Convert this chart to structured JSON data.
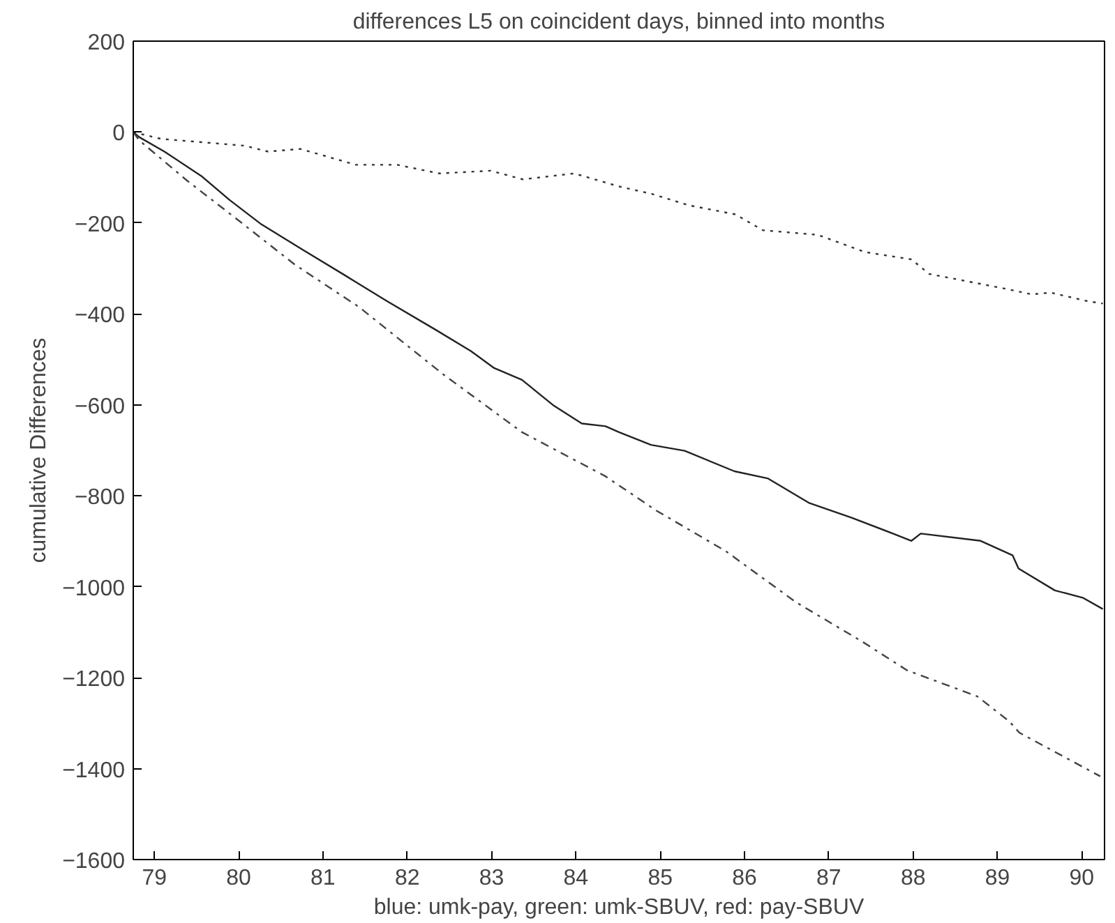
{
  "chart_data": {
    "type": "line",
    "title": "differences L5 on coincident days, binned into months",
    "xlabel": "blue: umk-pay, green: umk-SBUV, red: pay-SBUV",
    "ylabel": "cumulative Differences",
    "xlim": [
      78.75,
      90.27
    ],
    "ylim": [
      -1600,
      200
    ],
    "xticks": [
      79,
      80,
      81,
      82,
      83,
      84,
      85,
      86,
      87,
      88,
      89,
      90
    ],
    "yticks": [
      -1600,
      -1400,
      -1200,
      -1000,
      -800,
      -600,
      -400,
      -200,
      0,
      200
    ],
    "series": [
      {
        "color": "#333333",
        "line_style": "dotted",
        "x": [
          78.75,
          79.08,
          80.07,
          80.35,
          80.73,
          81.39,
          81.88,
          82.38,
          82.99,
          83.37,
          83.98,
          84.52,
          84.9,
          85.34,
          85.89,
          86.22,
          86.87,
          87.43,
          87.98,
          88.19,
          89.08,
          89.41,
          89.63,
          90.07,
          90.25
        ],
        "values": [
          0,
          -15,
          -30,
          -43,
          -37,
          -72,
          -72,
          -91,
          -85,
          -104,
          -91,
          -120,
          -136,
          -161,
          -181,
          -216,
          -226,
          -264,
          -280,
          -312,
          -344,
          -357,
          -353,
          -372,
          -377
        ]
      },
      {
        "color": "#222222",
        "line_style": "solid",
        "x": [
          78.75,
          78.82,
          79.12,
          79.56,
          79.89,
          80.27,
          80.77,
          81.26,
          81.76,
          82.32,
          82.75,
          83.03,
          83.36,
          83.74,
          84.07,
          84.35,
          84.51,
          84.89,
          85.29,
          85.88,
          86.28,
          86.77,
          87.27,
          87.76,
          87.98,
          88.09,
          88.8,
          89.18,
          89.25,
          89.68,
          90.01,
          90.25
        ],
        "values": [
          0,
          -11,
          -43,
          -97,
          -149,
          -203,
          -260,
          -315,
          -372,
          -433,
          -481,
          -519,
          -545,
          -602,
          -641,
          -647,
          -660,
          -688,
          -701,
          -746,
          -762,
          -816,
          -848,
          -883,
          -899,
          -883,
          -899,
          -931,
          -960,
          -1008,
          -1024,
          -1049
        ]
      },
      {
        "color": "#444444",
        "line_style": "dashed",
        "x": [
          78.75,
          78.82,
          79.39,
          80.01,
          80.67,
          81.43,
          82.42,
          83.36,
          84.35,
          84.95,
          85.78,
          86.61,
          87.39,
          87.93,
          88.76,
          89.14,
          89.26,
          90.22
        ],
        "values": [
          0,
          -18,
          -107,
          -196,
          -292,
          -385,
          -532,
          -660,
          -757,
          -832,
          -922,
          -1034,
          -1120,
          -1184,
          -1241,
          -1296,
          -1321,
          -1417
        ]
      }
    ]
  }
}
